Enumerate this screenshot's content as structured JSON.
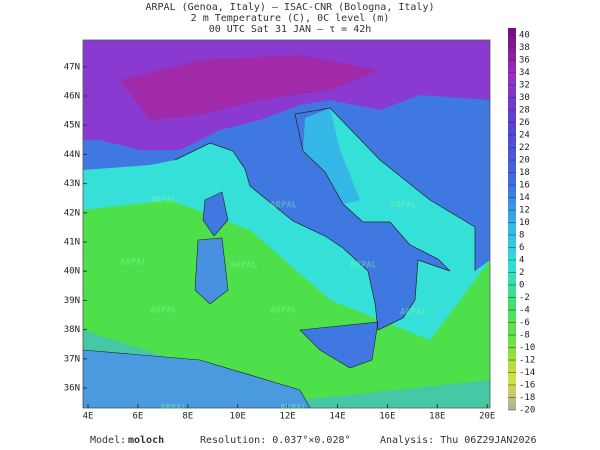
{
  "header": {
    "line1": "ARPAL (Genoa, Italy)  —  ISAC-CNR (Bologna, Italy)",
    "line2": "2 m Temperature (C), 0C level (m)",
    "line3": "00 UTC Sat 31 JAN  —  τ = 42h"
  },
  "map": {
    "lat_labels": [
      "36N",
      "37N",
      "38N",
      "39N",
      "40N",
      "41N",
      "42N",
      "43N",
      "44N",
      "45N",
      "46N",
      "47N"
    ],
    "lon_labels": [
      "4E",
      "6E",
      "8E",
      "10E",
      "12E",
      "14E",
      "16E",
      "18E",
      "20E"
    ],
    "watermark": "ARPAL"
  },
  "colorbar": {
    "ticks": [
      40,
      38,
      36,
      34,
      32,
      30,
      28,
      26,
      24,
      22,
      20,
      18,
      16,
      14,
      12,
      10,
      8,
      6,
      4,
      2,
      0,
      -2,
      -4,
      -6,
      -8,
      -10,
      -12,
      -14,
      -16,
      -18,
      -20
    ]
  },
  "footer": {
    "model_label": "Model:",
    "model": "moloch",
    "resolution": "Resolution: 0.037°×0.028°",
    "analysis": "Analysis: Thu 06Z29JAN2026"
  }
}
